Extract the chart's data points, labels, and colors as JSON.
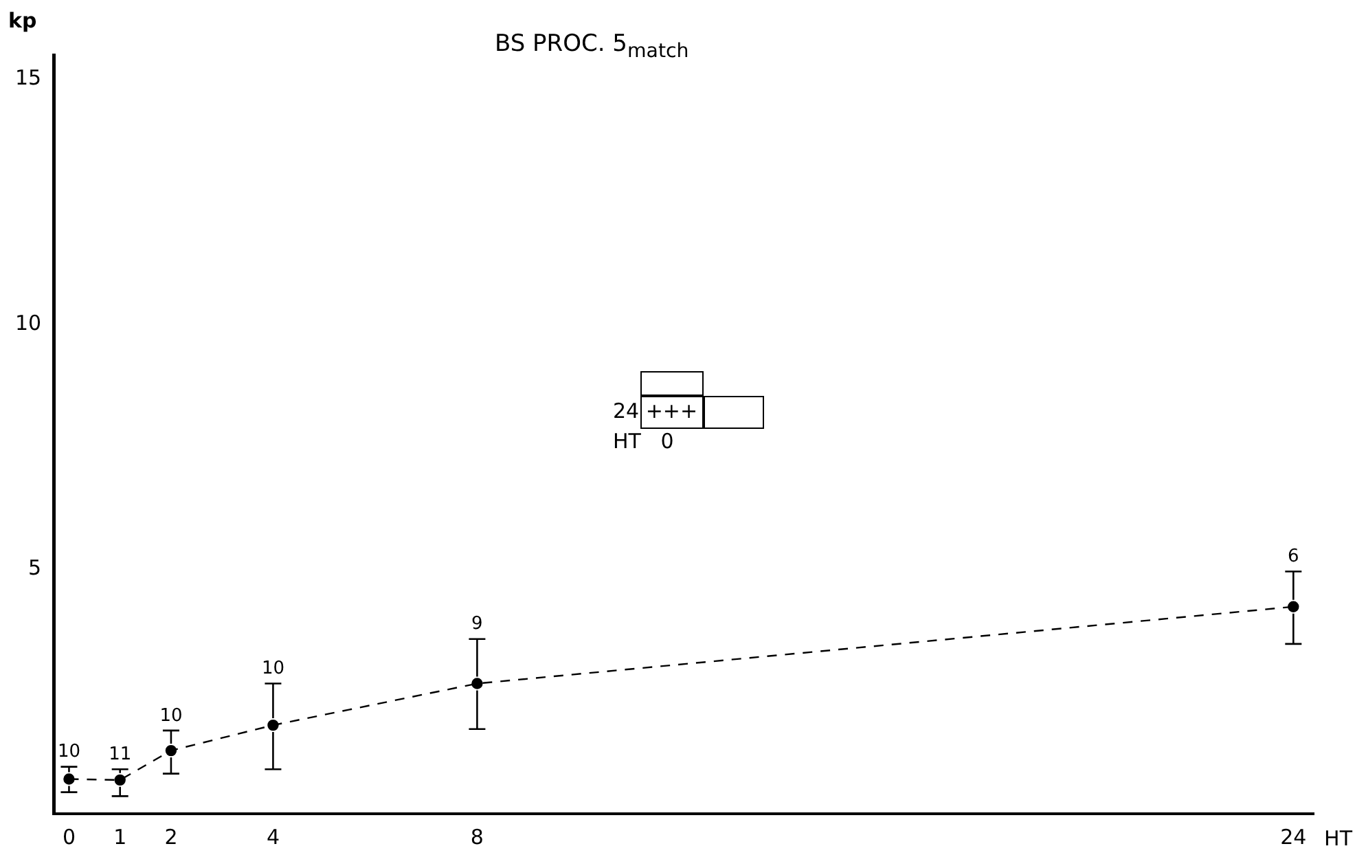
{
  "chart_data": {
    "type": "scatter",
    "title": "BS PROC. 5$_{match}$",
    "xlabel": "HT",
    "ylabel": "kp",
    "x": [
      0,
      1,
      2,
      4,
      8,
      24
    ],
    "series": [
      {
        "color": "#000000",
        "values": [
          0.71,
          0.69,
          1.29,
          1.81,
          2.66,
          4.23
        ],
        "errors": [
          [
            0.44,
            0.96
          ],
          [
            0.36,
            0.91
          ],
          [
            0.82,
            1.7
          ],
          [
            0.91,
            2.66
          ],
          [
            1.73,
            3.57
          ],
          [
            3.47,
            4.95
          ]
        ]
      }
    ],
    "xlim": [
      -0.3,
      24.4
    ],
    "ylim": [
      0,
      15.5
    ],
    "xticks": [
      0,
      1,
      2,
      4,
      8,
      24
    ],
    "yticks": [
      5,
      10,
      15
    ],
    "line_style": "dashed",
    "grid": false,
    "legend": false,
    "annotations": [
      {
        "text": "10",
        "x": 0,
        "y": 0.96
      },
      {
        "text": "11",
        "x": 1,
        "y": 0.91
      },
      {
        "text": "10",
        "x": 2,
        "y": 1.7
      },
      {
        "text": "10",
        "x": 4,
        "y": 2.66
      },
      {
        "text": "9",
        "x": 8,
        "y": 3.57
      },
      {
        "text": "6",
        "x": 24,
        "y": 4.95
      },
      "24 +++",
      "HT   0"
    ]
  }
}
